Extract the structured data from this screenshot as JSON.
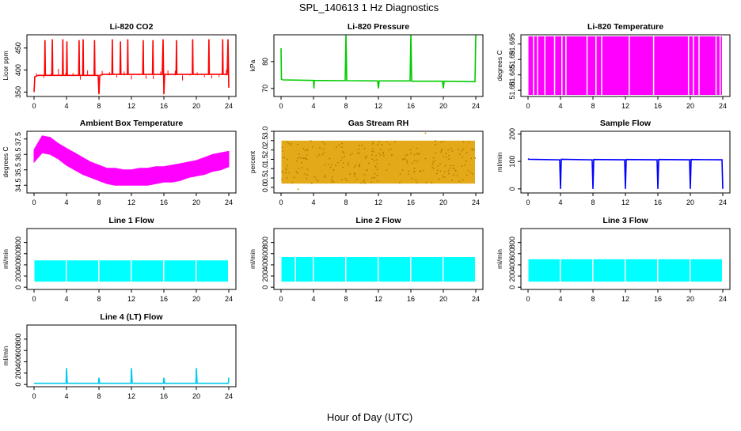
{
  "figure": {
    "title": "SPL_140613  1 Hz Diagnostics",
    "xlabel": "Hour of Day (UTC)"
  },
  "chart_data": [
    {
      "type": "line",
      "title": "Li-820 CO2",
      "ylabel": "Licor ppm",
      "xlim": [
        0,
        24
      ],
      "ylim": [
        340,
        480
      ],
      "yticks": [
        350,
        400,
        450
      ],
      "xticks": [
        0,
        4,
        8,
        12,
        16,
        20,
        24
      ],
      "color": "#ff0000",
      "series": [
        {
          "x": [
            0,
            0.1,
            0.5,
            1.3,
            1.35,
            1.4,
            2.2,
            2.25,
            2.3,
            3.5,
            3.55,
            3.6,
            4.0,
            4.05,
            4.1,
            5.5,
            5.55,
            5.6,
            6.0,
            6.05,
            6.1,
            7.4,
            7.45,
            7.5,
            7.9,
            8.0,
            8.1,
            8.5,
            9.6,
            9.65,
            9.7,
            10.6,
            10.65,
            10.7,
            11.5,
            11.55,
            11.6,
            12.0,
            12.5,
            13.4,
            13.45,
            13.5,
            14.6,
            14.65,
            14.7,
            15.8,
            15.9,
            16.0,
            16.1,
            17.5,
            17.55,
            17.6,
            19.5,
            19.55,
            19.6,
            20.0,
            21.5,
            21.55,
            21.6,
            23.2,
            23.25,
            23.3,
            23.8,
            23.9,
            24.0
          ],
          "y": [
            350,
            385,
            388,
            388,
            468,
            388,
            388,
            470,
            388,
            388,
            470,
            388,
            388,
            465,
            388,
            388,
            468,
            388,
            388,
            470,
            388,
            388,
            468,
            388,
            388,
            345,
            388,
            390,
            390,
            470,
            390,
            390,
            465,
            390,
            390,
            470,
            390,
            390,
            390,
            390,
            468,
            390,
            390,
            468,
            390,
            390,
            470,
            345,
            390,
            390,
            468,
            390,
            390,
            470,
            390,
            390,
            390,
            470,
            390,
            390,
            470,
            390,
            390,
            470,
            360
          ]
        }
      ]
    },
    {
      "type": "line",
      "title": "Li-820 Pressure",
      "ylabel": "kPa",
      "xlim": [
        0,
        24
      ],
      "ylim": [
        67,
        90
      ],
      "yticks": [
        70,
        80
      ],
      "xticks": [
        0,
        4,
        8,
        12,
        16,
        20,
        24
      ],
      "color": "#00cc00",
      "series": [
        {
          "x": [
            0,
            0.05,
            0.2,
            4.0,
            4.05,
            4.1,
            7.9,
            8.0,
            8.1,
            11.9,
            12.0,
            12.1,
            15.9,
            16.0,
            16.1,
            19.9,
            20.0,
            20.1,
            23.9,
            24.0
          ],
          "y": [
            85,
            73.5,
            73.2,
            73.0,
            70,
            73.0,
            72.9,
            90,
            72.9,
            72.8,
            70,
            72.8,
            72.8,
            90,
            72.7,
            72.7,
            70,
            72.7,
            72.5,
            90
          ]
        }
      ]
    },
    {
      "type": "bar",
      "title": "Li-820 Temperature",
      "ylabel": "degrees C",
      "xlim": [
        0,
        24
      ],
      "ylim": [
        51.678,
        51.698
      ],
      "yticks": [
        51.68,
        51.685,
        51.69,
        51.695
      ],
      "xticks": [
        0,
        4,
        8,
        12,
        16,
        20,
        24
      ],
      "color": "#ff00ff",
      "note_levels": "alternates between discrete sensor levels; dense vertical fill",
      "gaps_hours": [
        0.6,
        1.1,
        2.0,
        3.2,
        4.1,
        4.6,
        7.2,
        8.3,
        9.0,
        12.4,
        15.4,
        19.7,
        20.3,
        21.0,
        23.1,
        23.6
      ]
    },
    {
      "type": "area",
      "title": "Ambient Box Temperature",
      "ylabel": "degrees C",
      "xlim": [
        0,
        24
      ],
      "ylim": [
        34.0,
        38.0
      ],
      "yticks": [
        34.5,
        35.5,
        36.5,
        37.5
      ],
      "xticks": [
        0,
        4,
        8,
        12,
        16,
        20,
        24
      ],
      "color": "#ff00ff",
      "series": [
        {
          "x": [
            0,
            1,
            2,
            3,
            4,
            5,
            6,
            7,
            8,
            9,
            10,
            11,
            12,
            13,
            14,
            15,
            16,
            17,
            18,
            19,
            20,
            21,
            22,
            23,
            24
          ],
          "upper": [
            36.8,
            37.7,
            37.6,
            37.2,
            36.9,
            36.6,
            36.3,
            36.0,
            35.8,
            35.6,
            35.6,
            35.5,
            35.5,
            35.6,
            35.6,
            35.7,
            35.7,
            35.8,
            35.9,
            36.0,
            36.1,
            36.3,
            36.5,
            36.6,
            36.7
          ],
          "lower": [
            36.0,
            36.6,
            36.5,
            36.2,
            35.8,
            35.5,
            35.2,
            35.0,
            34.8,
            34.6,
            34.5,
            34.5,
            34.5,
            34.5,
            34.5,
            34.6,
            34.7,
            34.7,
            34.8,
            35.0,
            35.1,
            35.2,
            35.4,
            35.5,
            35.7
          ]
        }
      ]
    },
    {
      "type": "scatter",
      "title": "Gas Stream RH",
      "ylabel": "percent",
      "xlim": [
        0,
        24
      ],
      "ylim": [
        -0.3,
        3.0
      ],
      "yticks": [
        0.0,
        0.5,
        1.0,
        1.5,
        2.0,
        2.5,
        3.0
      ],
      "xticks": [
        0,
        4,
        8,
        12,
        16,
        20,
        24
      ],
      "color": "#e0a000",
      "band": {
        "low": 0.2,
        "high": 2.5,
        "outliers": [
          2.9,
          -0.1
        ]
      }
    },
    {
      "type": "line",
      "title": "Sample Flow",
      "ylabel": "ml/min",
      "xlim": [
        0,
        24
      ],
      "ylim": [
        -15,
        210
      ],
      "yticks": [
        0,
        100,
        200
      ],
      "xticks": [
        0,
        4,
        8,
        12,
        16,
        20,
        24
      ],
      "color": "#0000ff",
      "series": [
        {
          "x": [
            0,
            0.1,
            3.9,
            4.0,
            4.1,
            7.9,
            8.0,
            8.1,
            11.9,
            12.0,
            12.1,
            15.9,
            16.0,
            16.1,
            19.9,
            20.0,
            20.1,
            23.9,
            24.0
          ],
          "y": [
            110,
            108,
            106,
            0,
            108,
            106,
            0,
            107,
            106,
            0,
            107,
            106,
            0,
            107,
            106,
            0,
            107,
            106,
            0
          ]
        }
      ]
    },
    {
      "type": "area",
      "title": "Line 1 Flow",
      "ylabel": "ml/min",
      "xlim": [
        0,
        24
      ],
      "ylim": [
        -40,
        1050
      ],
      "yticks": [
        0,
        200,
        400,
        600,
        800
      ],
      "xticks": [
        0,
        4,
        8,
        12,
        16,
        20,
        24
      ],
      "color": "#00ffff",
      "band": {
        "low": 100,
        "high": 480
      },
      "gaps_hours": [
        3.9,
        7.9,
        11.9,
        15.9,
        19.9
      ]
    },
    {
      "type": "area",
      "title": "Line 2 Flow",
      "ylabel": "ml/min",
      "xlim": [
        0,
        24
      ],
      "ylim": [
        -40,
        1050
      ],
      "yticks": [
        0,
        200,
        400,
        600,
        800
      ],
      "xticks": [
        0,
        4,
        8,
        12,
        16,
        20,
        24
      ],
      "color": "#00ffff",
      "band": {
        "low": 100,
        "high": 540
      },
      "gaps_hours": [
        1.7,
        3.9,
        7.9,
        11.9,
        15.9,
        19.9
      ]
    },
    {
      "type": "area",
      "title": "Line 3 Flow",
      "ylabel": "ml/min",
      "xlim": [
        0,
        24
      ],
      "ylim": [
        -40,
        1050
      ],
      "yticks": [
        0,
        200,
        400,
        600,
        800
      ],
      "xticks": [
        0,
        4,
        8,
        12,
        16,
        20,
        24
      ],
      "color": "#00ffff",
      "band": {
        "low": 100,
        "high": 500
      },
      "gaps_hours": [
        3.9,
        7.9,
        11.9,
        15.9,
        19.9
      ]
    },
    {
      "type": "line",
      "title": "Line 4 (LT) Flow",
      "ylabel": "ml/min",
      "xlim": [
        0,
        24
      ],
      "ylim": [
        -40,
        1050
      ],
      "yticks": [
        0,
        200,
        400,
        600,
        800
      ],
      "xticks": [
        0,
        4,
        8,
        12,
        16,
        20,
        24
      ],
      "color": "#00ccee",
      "series": [
        {
          "x": [
            0,
            3.95,
            4.0,
            4.1,
            7.95,
            8.0,
            8.1,
            11.95,
            12.0,
            12.1,
            15.95,
            16.0,
            16.1,
            19.95,
            20.0,
            20.1,
            23.95,
            24.0
          ],
          "y": [
            20,
            20,
            290,
            20,
            20,
            120,
            20,
            20,
            290,
            20,
            20,
            120,
            20,
            20,
            290,
            20,
            20,
            120
          ]
        }
      ]
    }
  ]
}
